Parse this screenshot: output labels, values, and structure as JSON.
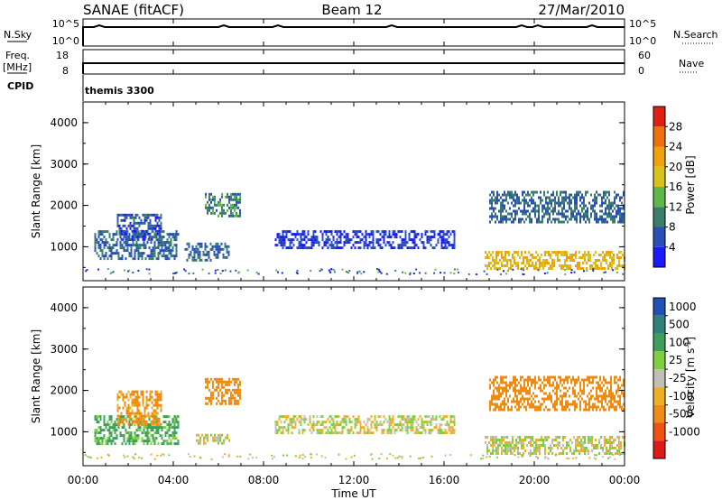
{
  "header": {
    "station": "SANAE (fitACF)",
    "beam": "Beam 12",
    "date": "27/Mar/2010"
  },
  "side_labels": {
    "nsky": "N.Sky",
    "freq_line1": "Freq.",
    "freq_line2": "[MHz]",
    "cpid": "CPID",
    "nsearch": "N.Search",
    "nave": "Nave",
    "cpid_value": "themis 3300"
  },
  "mini_axes": {
    "nsky_ticks": [
      "10^5",
      "10^0"
    ],
    "nsearch_ticks": [
      "10^5",
      "10^0"
    ],
    "freq_ticks": [
      "18",
      "8"
    ],
    "nave_ticks": [
      "60",
      "0"
    ]
  },
  "axes": {
    "xlabel": "Time UT",
    "xticks": [
      "00:00",
      "04:00",
      "08:00",
      "12:00",
      "16:00",
      "20:00",
      "00:00"
    ],
    "ylabel": "Slant Range [km]",
    "yticks": [
      "1000",
      "2000",
      "3000",
      "4000"
    ]
  },
  "colorbars": {
    "power": {
      "label": "Power [dB]",
      "ticks": [
        "4",
        "8",
        "12",
        "16",
        "20",
        "24",
        "28"
      ],
      "colors": [
        "#1a1aff",
        "#2a4fb8",
        "#3a7d6a",
        "#5fb84a",
        "#d9c21a",
        "#f0a10e",
        "#f0700e",
        "#e02010"
      ]
    },
    "velocity": {
      "label": "Velocity [m s^-1]",
      "ticks": [
        "1000",
        "500",
        "100",
        "25",
        "-25",
        "-100",
        "-500",
        "-1000"
      ],
      "colors": [
        "#2050b8",
        "#2f7f7a",
        "#3f9f5a",
        "#7fd040",
        "#c0c0b8",
        "#f0b020",
        "#f08a10",
        "#f05010",
        "#e01818"
      ]
    }
  },
  "chart_data": [
    {
      "type": "heatmap",
      "title": "Power",
      "xlabel": "Time UT",
      "ylabel": "Slant Range [km]",
      "xlim": [
        0,
        24
      ],
      "ylim": [
        180,
        4500
      ],
      "colorbar_range": [
        0,
        30
      ],
      "regions": [
        {
          "t": [
            0.5,
            4.2
          ],
          "r": [
            700,
            1400
          ],
          "power": 8
        },
        {
          "t": [
            1.5,
            3.5
          ],
          "r": [
            1200,
            1800
          ],
          "power": 6
        },
        {
          "t": [
            5.4,
            7.0
          ],
          "r": [
            1750,
            2300
          ],
          "power": 10
        },
        {
          "t": [
            4.5,
            6.5
          ],
          "r": [
            650,
            1100
          ],
          "power": 8
        },
        {
          "t": [
            8.5,
            16.5
          ],
          "r": [
            1000,
            1400
          ],
          "power": 4
        },
        {
          "t": [
            18.0,
            24.0
          ],
          "r": [
            1600,
            2350
          ],
          "power": 8
        },
        {
          "t": [
            17.8,
            24.0
          ],
          "r": [
            500,
            900
          ],
          "power": 20
        }
      ]
    },
    {
      "type": "heatmap",
      "title": "Velocity",
      "xlabel": "Time UT",
      "ylabel": "Slant Range [km]",
      "xlim": [
        0,
        24
      ],
      "ylim": [
        180,
        4500
      ],
      "colorbar_range": [
        -1000,
        1000
      ],
      "regions": [
        {
          "t": [
            0.5,
            4.2
          ],
          "r": [
            700,
            1400
          ],
          "velocity": 150
        },
        {
          "t": [
            1.5,
            3.5
          ],
          "r": [
            1200,
            2000
          ],
          "velocity": -150
        },
        {
          "t": [
            5.4,
            7.0
          ],
          "r": [
            1700,
            2300
          ],
          "velocity": -200
        },
        {
          "t": [
            5.0,
            6.5
          ],
          "r": [
            700,
            950
          ],
          "velocity": 0
        },
        {
          "t": [
            8.5,
            16.5
          ],
          "r": [
            1000,
            1400
          ],
          "velocity": 0
        },
        {
          "t": [
            18.0,
            24.0
          ],
          "r": [
            1500,
            2350
          ],
          "velocity": -200
        },
        {
          "t": [
            17.8,
            24.0
          ],
          "r": [
            500,
            900
          ],
          "velocity": 0
        }
      ]
    }
  ]
}
